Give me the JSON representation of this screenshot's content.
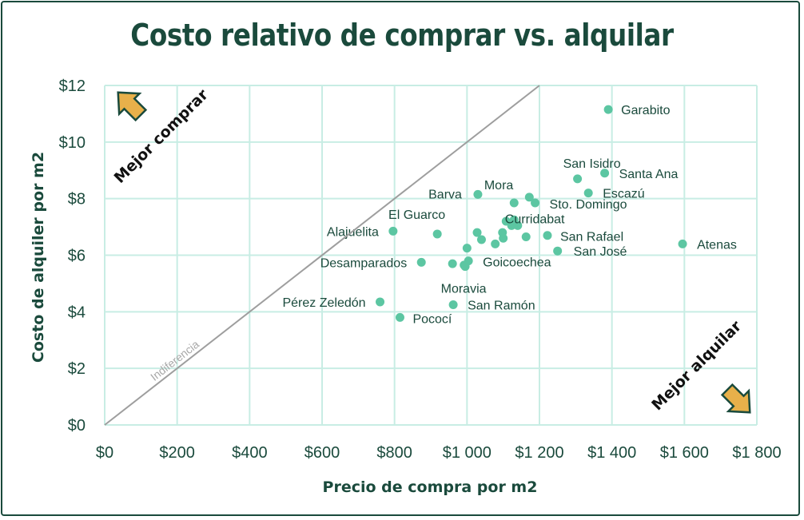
{
  "colors": {
    "frame": "#1a4a3c",
    "grid": "#c8ede4",
    "point": "#5cc6a2",
    "diagonal": "#9e9e9e",
    "arrow_fill": "#e8b04a",
    "arrow_stroke": "#1a4a3c"
  },
  "chart_data": {
    "type": "scatter",
    "title": "Costo relativo de comprar vs. alquilar",
    "xlabel": "Precio de compra por m2",
    "ylabel": "Costo de alquiler por m2",
    "xlim": [
      0,
      1800
    ],
    "ylim": [
      0,
      12
    ],
    "x_ticks": [
      "$0",
      "$200",
      "$400",
      "$600",
      "$800",
      "$1 000",
      "$1 200",
      "$1 400",
      "$1 600",
      "$1 800"
    ],
    "y_ticks": [
      "$0",
      "$2",
      "$4",
      "$6",
      "$8",
      "$10",
      "$12"
    ],
    "grid": true,
    "diagonal_label": "Indiferencia",
    "annotations": {
      "upper_left": "Mejor comprar",
      "lower_right": "Mejor alquilar"
    },
    "points": [
      {
        "label": "Garabito",
        "x": 1390,
        "y": 11.15
      },
      {
        "label": "San Isidro",
        "x": 1305,
        "y": 8.7
      },
      {
        "label": "Santa Ana",
        "x": 1380,
        "y": 8.9
      },
      {
        "label": "Mora",
        "x": 1172,
        "y": 8.05
      },
      {
        "label": "Escazú",
        "x": 1335,
        "y": 8.2
      },
      {
        "label": "Barva",
        "x": 1030,
        "y": 8.15
      },
      {
        "label": "Sto. Domingo",
        "x": 1188,
        "y": 7.85
      },
      {
        "label": "El Guarco",
        "x": 918,
        "y": 6.75
      },
      {
        "label": "Curridabat",
        "x": 1140,
        "y": 7.05
      },
      {
        "label": "Alajuelita",
        "x": 796,
        "y": 6.85
      },
      {
        "label": "San Rafael",
        "x": 1222,
        "y": 6.7
      },
      {
        "label": "Atenas",
        "x": 1595,
        "y": 6.4
      },
      {
        "label": "San José",
        "x": 1250,
        "y": 6.15
      },
      {
        "label": "Desamparados",
        "x": 874,
        "y": 5.75
      },
      {
        "label": "Goicoechea",
        "x": 1004,
        "y": 5.8
      },
      {
        "label": "Moravia",
        "x": 995,
        "y": 5.6
      },
      {
        "label": "Pérez Zeledón",
        "x": 760,
        "y": 4.35
      },
      {
        "label": "San Ramón",
        "x": 962,
        "y": 4.25
      },
      {
        "label": "Pococí",
        "x": 815,
        "y": 3.8
      },
      {
        "label": "",
        "x": 1130,
        "y": 7.85
      },
      {
        "label": "",
        "x": 1108,
        "y": 7.2
      },
      {
        "label": "",
        "x": 1130,
        "y": 7.25
      },
      {
        "label": "",
        "x": 1123,
        "y": 7.05
      },
      {
        "label": "",
        "x": 1028,
        "y": 6.8
      },
      {
        "label": "",
        "x": 1098,
        "y": 6.8
      },
      {
        "label": "",
        "x": 1163,
        "y": 6.65
      },
      {
        "label": "",
        "x": 1100,
        "y": 6.6
      },
      {
        "label": "",
        "x": 1040,
        "y": 6.55
      },
      {
        "label": "",
        "x": 1078,
        "y": 6.4
      },
      {
        "label": "",
        "x": 1000,
        "y": 6.25
      },
      {
        "label": "",
        "x": 960,
        "y": 5.7
      },
      {
        "label": "",
        "x": 992,
        "y": 5.65
      }
    ]
  }
}
